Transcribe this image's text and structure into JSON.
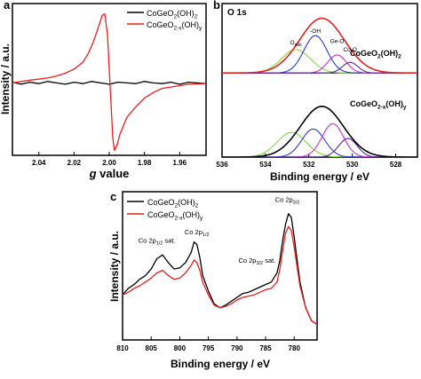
{
  "colors": {
    "black_series": "#000000",
    "red_series": "#e8201e",
    "green": "#7ddc3a",
    "blue": "#2a39d6",
    "magenta": "#c630c6",
    "purple": "#5a2aa0"
  },
  "chart_data": [
    {
      "id": "a",
      "type": "line",
      "panel_label": "a",
      "xlabel_italic": "g",
      "xlabel_rest": " value",
      "ylabel": "Intensity / a.u.",
      "xlim": [
        2.055,
        1.945
      ],
      "x_ticks": [
        2.04,
        2.02,
        2.0,
        1.98,
        1.96
      ],
      "x_tick_labels": [
        "2.04",
        "2.02",
        "2.00",
        "1.98",
        "1.96"
      ],
      "ylim": [
        -1.05,
        1.15
      ],
      "legend": {
        "position": "top-right",
        "entries": [
          {
            "label": "CoGeO",
            "sub1": "2",
            "mid": "(OH)",
            "sub2": "2",
            "color": "#000000"
          },
          {
            "label": "CoGeO",
            "sub1": "2-x",
            "mid": "(OH)",
            "sub2": "y",
            "color": "#e8201e"
          }
        ]
      },
      "series": [
        {
          "name": "CoGeO2(OH)2",
          "color": "#000000",
          "x": [
            2.055,
            2.05,
            2.045,
            2.04,
            2.035,
            2.03,
            2.025,
            2.02,
            2.015,
            2.01,
            2.005,
            2.0,
            1.995,
            1.99,
            1.985,
            1.98,
            1.975,
            1.97,
            1.965,
            1.96,
            1.955,
            1.95,
            1.945
          ],
          "y": [
            0.01,
            -0.02,
            0.01,
            -0.01,
            0.02,
            0.0,
            -0.02,
            0.01,
            -0.01,
            0.02,
            0.0,
            -0.02,
            0.01,
            0.0,
            -0.01,
            0.02,
            0.0,
            -0.01,
            0.01,
            -0.02,
            0.01,
            0.0,
            -0.01
          ]
        },
        {
          "name": "CoGeO2-x(OH)y",
          "color": "#e8201e",
          "x": [
            2.055,
            2.045,
            2.035,
            2.03,
            2.025,
            2.02,
            2.015,
            2.012,
            2.009,
            2.006,
            2.004,
            2.0025,
            2.001,
            2.0,
            1.999,
            1.998,
            1.997,
            1.9955,
            1.994,
            1.99,
            1.985,
            1.98,
            1.975,
            1.97,
            1.96,
            1.955,
            1.945
          ],
          "y": [
            0.0,
            0.04,
            0.07,
            0.1,
            0.14,
            0.2,
            0.3,
            0.42,
            0.6,
            0.82,
            0.98,
            1.0,
            0.7,
            0.2,
            -0.3,
            -0.8,
            -0.98,
            -0.9,
            -0.75,
            -0.5,
            -0.35,
            -0.22,
            -0.14,
            -0.08,
            -0.04,
            -0.02,
            -0.01
          ]
        }
      ]
    },
    {
      "id": "b",
      "type": "line",
      "panel_label": "b",
      "title": "O 1s",
      "xlabel": "Binding energy / eV",
      "xlim": [
        536,
        527
      ],
      "x_ticks": [
        536,
        534,
        532,
        530,
        528
      ],
      "x_tick_labels": [
        "536",
        "534",
        "532",
        "530",
        "528"
      ],
      "ylim": [
        0,
        2.3
      ],
      "top_label": {
        "main": "CoGeO",
        "sub1": "2",
        "mid": "(OH)",
        "sub2": "2"
      },
      "bottom_label": {
        "main": "CoGeO",
        "sub1": "2-x",
        "mid": "(OH)",
        "sub2": "y"
      },
      "peak_labels": {
        "oads": {
          "main": "O",
          "sub": "ads",
          "x": 532.6,
          "y": 1.69
        },
        "oh": {
          "text": "-OH",
          "x": 531.7,
          "y": 1.86
        },
        "geo": {
          "text": "Ge-O",
          "x": 530.7,
          "y": 1.71
        },
        "coo": {
          "text": "Co-O",
          "x": 530.1,
          "y": 1.58
        }
      },
      "top_baseline": 1.26,
      "bottom_baseline": 0.0,
      "top_envelope": {
        "color": "#e8201e",
        "amp": 0.82,
        "center": 531.4,
        "width": 1.45
      },
      "bottom_envelope": {
        "color": "#000000",
        "amp": 0.76,
        "center": 531.4,
        "width": 1.4
      },
      "top_components": [
        {
          "name": "O_ads",
          "color": "#7ddc3a",
          "amp": 0.35,
          "center": 532.6,
          "width": 0.95
        },
        {
          "name": "-OH",
          "color": "#2a39d6",
          "amp": 0.56,
          "center": 531.7,
          "width": 0.75
        },
        {
          "name": "Ge-O",
          "color": "#c630c6",
          "amp": 0.27,
          "center": 530.7,
          "width": 0.6
        },
        {
          "name": "Co-O",
          "color": "#5a2aa0",
          "amp": 0.16,
          "center": 530.1,
          "width": 0.5
        }
      ],
      "bottom_components": [
        {
          "name": "O_ads",
          "color": "#7ddc3a",
          "amp": 0.37,
          "center": 532.8,
          "width": 0.95
        },
        {
          "name": "-OH",
          "color": "#2a39d6",
          "amp": 0.42,
          "center": 531.8,
          "width": 0.75
        },
        {
          "name": "Ge-O",
          "color": "#c630c6",
          "amp": 0.5,
          "center": 530.9,
          "width": 0.7
        },
        {
          "name": "Co-O",
          "color": "#5a2aa0",
          "amp": 0.28,
          "center": 530.2,
          "width": 0.6
        }
      ]
    },
    {
      "id": "c",
      "type": "line",
      "panel_label": "c",
      "xlabel": "Binding energy / eV",
      "ylabel": "Intensity / a.u.",
      "xlim": [
        810,
        776
      ],
      "x_ticks": [
        810,
        805,
        800,
        795,
        790,
        785,
        780
      ],
      "x_tick_labels": [
        "810",
        "805",
        "800",
        "795",
        "790",
        "785",
        "780"
      ],
      "ylim": [
        0,
        1.15
      ],
      "legend": {
        "position": "top-left",
        "entries": [
          {
            "label": "CoGeO",
            "sub1": "2",
            "mid": "(OH)",
            "sub2": "2",
            "color": "#000000"
          },
          {
            "label": "CoGeO",
            "sub1": "2-x",
            "mid": "(OH)",
            "sub2": "y",
            "color": "#e8201e"
          }
        ]
      },
      "annotations": [
        {
          "main": "Co 2p",
          "sub": "1/2",
          "tail": " sat.",
          "x": 804.0,
          "y": 0.755
        },
        {
          "main": "Co 2p",
          "sub": "1/2",
          "tail": "",
          "x": 797.0,
          "y": 0.82
        },
        {
          "main": "Co 2p",
          "sub": "3/2",
          "tail": " sat.",
          "x": 786.5,
          "y": 0.6
        },
        {
          "main": "Co 2p",
          "sub": "3/2",
          "tail": "",
          "x": 781.2,
          "y": 1.07
        }
      ],
      "series": [
        {
          "name": "CoGeO2(OH)2",
          "color": "#000000",
          "x": [
            810,
            809,
            808,
            807,
            806,
            805,
            804,
            803,
            802,
            801,
            800,
            799,
            798,
            797.5,
            797,
            796.5,
            796,
            795,
            794,
            793,
            792,
            791,
            790,
            789,
            788,
            787,
            786,
            785,
            784,
            783,
            782.5,
            782,
            781.5,
            781,
            780.5,
            780,
            779,
            778,
            777,
            776
          ],
          "y": [
            0.35,
            0.4,
            0.43,
            0.47,
            0.5,
            0.55,
            0.63,
            0.66,
            0.6,
            0.55,
            0.56,
            0.6,
            0.68,
            0.76,
            0.74,
            0.64,
            0.5,
            0.38,
            0.28,
            0.25,
            0.27,
            0.3,
            0.33,
            0.36,
            0.37,
            0.39,
            0.41,
            0.43,
            0.45,
            0.52,
            0.62,
            0.78,
            0.9,
            0.98,
            0.95,
            0.8,
            0.45,
            0.25,
            0.15,
            0.12
          ]
        },
        {
          "name": "CoGeO2-x(OH)y",
          "color": "#e8201e",
          "x": [
            810,
            809,
            808,
            807,
            806,
            805,
            804,
            803,
            802,
            801,
            800,
            799,
            798,
            797.5,
            797,
            796.5,
            796,
            795,
            794,
            793,
            792,
            791,
            790,
            789,
            788,
            787,
            786,
            785,
            784,
            783,
            782.5,
            782,
            781.5,
            781,
            780.5,
            780,
            779,
            778,
            777,
            776
          ],
          "y": [
            0.35,
            0.37,
            0.4,
            0.42,
            0.45,
            0.48,
            0.52,
            0.54,
            0.5,
            0.47,
            0.48,
            0.52,
            0.58,
            0.62,
            0.6,
            0.54,
            0.45,
            0.35,
            0.27,
            0.25,
            0.26,
            0.28,
            0.31,
            0.33,
            0.34,
            0.35,
            0.37,
            0.39,
            0.4,
            0.45,
            0.55,
            0.7,
            0.83,
            0.88,
            0.85,
            0.72,
            0.42,
            0.25,
            0.15,
            0.12
          ]
        }
      ]
    }
  ]
}
